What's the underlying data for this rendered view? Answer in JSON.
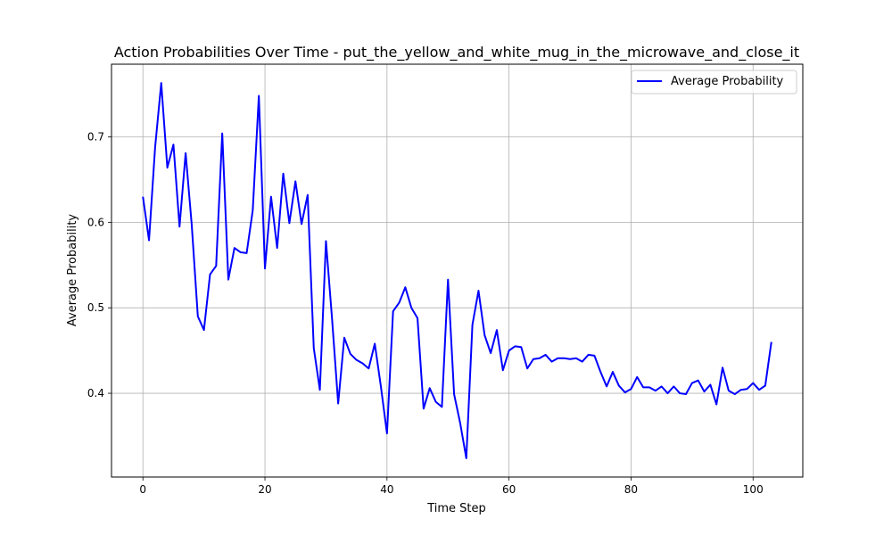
{
  "chart_data": {
    "type": "line",
    "title": "Action Probabilities Over Time - put_the_yellow_and_white_mug_in_the_microwave_and_close_it",
    "xlabel": "Time Step",
    "ylabel": "Average Probability",
    "xlim": [
      -5.15,
      108.15
    ],
    "ylim": [
      0.302,
      0.785
    ],
    "xticks": [
      0,
      20,
      40,
      60,
      80,
      100
    ],
    "yticks": [
      0.4,
      0.5,
      0.6,
      0.7
    ],
    "xtick_labels": [
      "0",
      "20",
      "40",
      "60",
      "80",
      "100"
    ],
    "ytick_labels": [
      "0.4",
      "0.5",
      "0.6",
      "0.7"
    ],
    "grid": true,
    "legend_position": "top-right",
    "series": [
      {
        "name": "Average Probability",
        "color": "#0000ff",
        "x": [
          0,
          1,
          2,
          3,
          4,
          5,
          6,
          7,
          8,
          9,
          10,
          11,
          12,
          13,
          14,
          15,
          16,
          17,
          18,
          19,
          20,
          21,
          22,
          23,
          24,
          25,
          26,
          27,
          28,
          29,
          30,
          31,
          32,
          33,
          34,
          35,
          36,
          37,
          38,
          39,
          40,
          41,
          42,
          43,
          44,
          45,
          46,
          47,
          48,
          49,
          50,
          51,
          52,
          53,
          54,
          55,
          56,
          57,
          58,
          59,
          60,
          61,
          62,
          63,
          64,
          65,
          66,
          67,
          68,
          69,
          70,
          71,
          72,
          73,
          74,
          75,
          76,
          77,
          78,
          79,
          80,
          81,
          82,
          83,
          84,
          85,
          86,
          87,
          88,
          89,
          90,
          91,
          92,
          93,
          94,
          95,
          96,
          97,
          98,
          99,
          100,
          101,
          102,
          103
        ],
        "y": [
          0.63,
          0.579,
          0.688,
          0.763,
          0.664,
          0.691,
          0.595,
          0.681,
          0.597,
          0.49,
          0.474,
          0.539,
          0.549,
          0.704,
          0.533,
          0.57,
          0.565,
          0.564,
          0.614,
          0.748,
          0.546,
          0.63,
          0.57,
          0.657,
          0.599,
          0.648,
          0.598,
          0.632,
          0.453,
          0.404,
          0.578,
          0.487,
          0.388,
          0.465,
          0.446,
          0.439,
          0.435,
          0.429,
          0.458,
          0.408,
          0.353,
          0.496,
          0.506,
          0.524,
          0.5,
          0.488,
          0.382,
          0.406,
          0.39,
          0.384,
          0.533,
          0.399,
          0.365,
          0.324,
          0.48,
          0.52,
          0.468,
          0.447,
          0.474,
          0.427,
          0.45,
          0.455,
          0.454,
          0.429,
          0.44,
          0.441,
          0.445,
          0.437,
          0.441,
          0.441,
          0.44,
          0.441,
          0.437,
          0.445,
          0.444,
          0.425,
          0.408,
          0.425,
          0.409,
          0.401,
          0.405,
          0.419,
          0.407,
          0.407,
          0.403,
          0.408,
          0.4,
          0.408,
          0.4,
          0.399,
          0.412,
          0.415,
          0.402,
          0.41,
          0.387,
          0.43,
          0.403,
          0.399,
          0.404,
          0.405,
          0.412,
          0.404,
          0.409,
          0.46
        ]
      }
    ]
  }
}
